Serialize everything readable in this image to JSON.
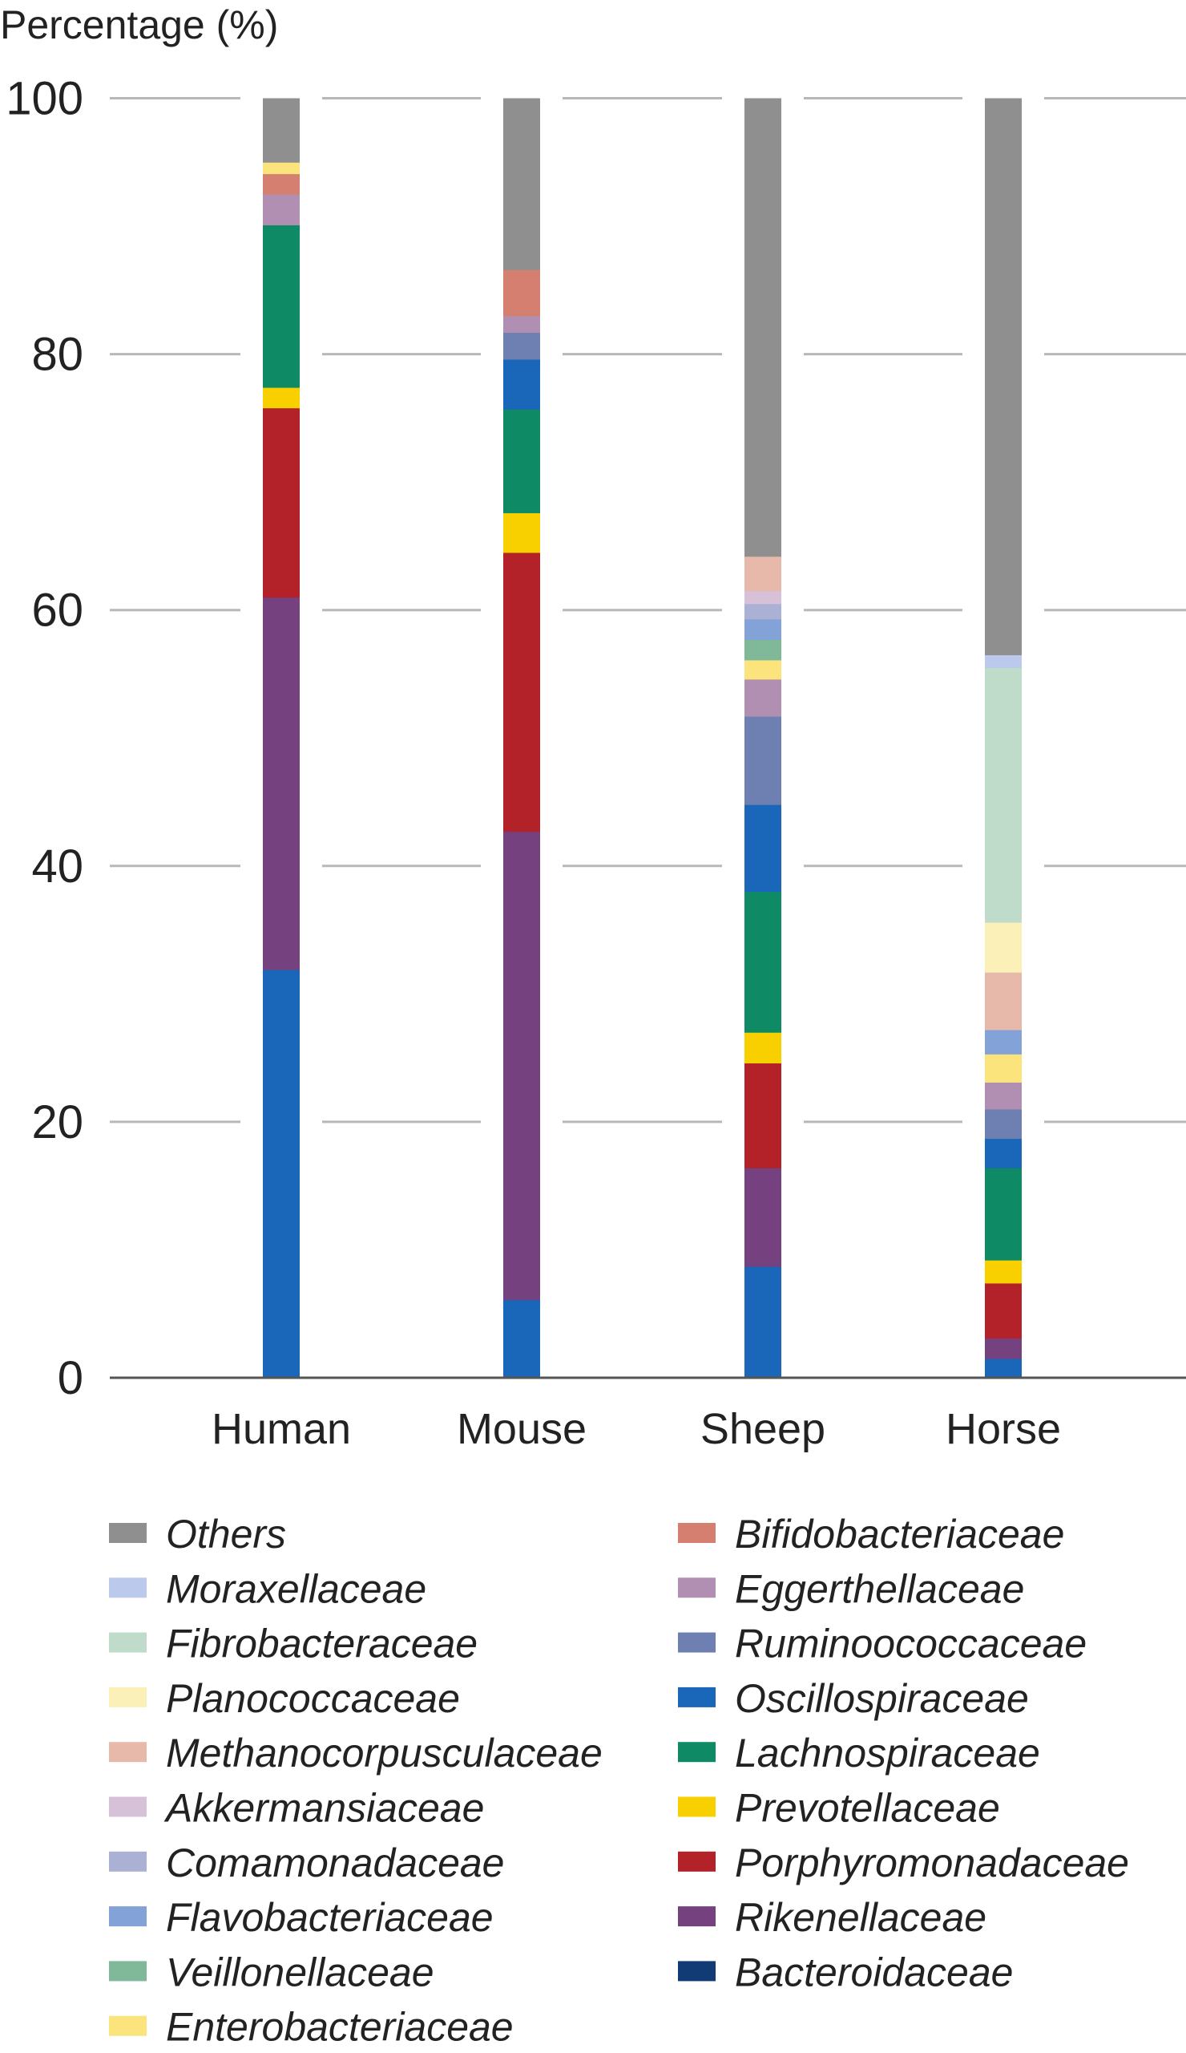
{
  "chart_data": {
    "type": "bar",
    "stacked": true,
    "title": "",
    "xlabel": "",
    "ylabel": "Percentage (%)",
    "ylim": [
      0,
      100
    ],
    "yticks": [
      "0",
      "20",
      "40",
      "60",
      "80",
      "100"
    ],
    "grid": true,
    "categories": [
      "Human",
      "Mouse",
      "Sheep",
      "Horse"
    ],
    "families": [
      {
        "name": "Others",
        "color": "#8f8f8f"
      },
      {
        "name": "Moraxellaceae",
        "color": "#bac9ec"
      },
      {
        "name": "Fibrobacteraceae",
        "color": "#bedcc9"
      },
      {
        "name": "Planococcaceae",
        "color": "#fbf1b8"
      },
      {
        "name": "Methanocorpusculaceae",
        "color": "#e7b9aa"
      },
      {
        "name": "Akkermansiaceae",
        "color": "#d7c1d9"
      },
      {
        "name": "Comamonadaceae",
        "color": "#abb1d4"
      },
      {
        "name": "Flavobacteriaceae",
        "color": "#82a2d8"
      },
      {
        "name": "Veillonellaceae",
        "color": "#7fb99a"
      },
      {
        "name": "Enterobacteriaceae",
        "color": "#fbe47c"
      },
      {
        "name": "Bifidobacteriaceae",
        "color": "#d47f6f"
      },
      {
        "name": "Eggerthellaceae",
        "color": "#b18fb2"
      },
      {
        "name": "Ruminoococcaceae",
        "color": "#6d80b1"
      },
      {
        "name": "Oscillospiraceae",
        "color": "#1a66b8"
      },
      {
        "name": "Lachnospiraceae",
        "color": "#0e8a65"
      },
      {
        "name": "Prevotellaceae",
        "color": "#f8d000"
      },
      {
        "name": "Porphyromonadaceae",
        "color": "#b32129"
      },
      {
        "name": "Rikenellaceae",
        "color": "#76417f"
      },
      {
        "name": "Bacteroidaceae",
        "color": "#113b75"
      }
    ],
    "bars": [
      {
        "category": "Human",
        "segments": [
          {
            "family": "Bacteroidaceae",
            "value": 31.9,
            "color": "#1a66b8"
          },
          {
            "family": "Rikenellaceae",
            "value": 29.1
          },
          {
            "family": "Porphyromonadaceae",
            "value": 14.8
          },
          {
            "family": "Prevotellaceae",
            "value": 1.6
          },
          {
            "family": "Lachnospiraceae",
            "value": 12.7
          },
          {
            "family": "Eggerthellaceae",
            "value": 2.4
          },
          {
            "family": "Bifidobacteriaceae",
            "value": 1.6
          },
          {
            "family": "Enterobacteriaceae",
            "value": 0.9
          },
          {
            "family": "Others",
            "value": 5.0
          }
        ]
      },
      {
        "category": "Mouse",
        "segments": [
          {
            "family": "Bacteroidaceae",
            "value": 6.1,
            "color": "#1a66b8"
          },
          {
            "family": "Rikenellaceae",
            "value": 36.6
          },
          {
            "family": "Porphyromonadaceae",
            "value": 21.8
          },
          {
            "family": "Prevotellaceae",
            "value": 3.1
          },
          {
            "family": "Lachnospiraceae",
            "value": 8.1
          },
          {
            "family": "Oscillospiraceae",
            "value": 3.9
          },
          {
            "family": "Ruminoococcaceae",
            "value": 2.1
          },
          {
            "family": "Eggerthellaceae",
            "value": 1.3
          },
          {
            "family": "Bifidobacteriaceae",
            "value": 3.6
          },
          {
            "family": "Others",
            "value": 13.4
          }
        ]
      },
      {
        "category": "Sheep",
        "segments": [
          {
            "family": "Bacteroidaceae",
            "value": 8.7,
            "color": "#1a66b8"
          },
          {
            "family": "Rikenellaceae",
            "value": 7.7
          },
          {
            "family": "Porphyromonadaceae",
            "value": 8.2
          },
          {
            "family": "Prevotellaceae",
            "value": 2.4
          },
          {
            "family": "Lachnospiraceae",
            "value": 11.0
          },
          {
            "family": "Oscillospiraceae",
            "value": 6.8
          },
          {
            "family": "Ruminoococcaceae",
            "value": 6.9
          },
          {
            "family": "Eggerthellaceae",
            "value": 2.9
          },
          {
            "family": "Enterobacteriaceae",
            "value": 1.5
          },
          {
            "family": "Veillonellaceae",
            "value": 1.6
          },
          {
            "family": "Flavobacteriaceae",
            "value": 1.6
          },
          {
            "family": "Comamonadaceae",
            "value": 1.2
          },
          {
            "family": "Akkermansiaceae",
            "value": 1.0
          },
          {
            "family": "Methanocorpusculaceae",
            "value": 2.7
          },
          {
            "family": "Others",
            "value": 35.8
          }
        ]
      },
      {
        "category": "Horse",
        "segments": [
          {
            "family": "Bacteroidaceae",
            "value": 1.5,
            "color": "#1a66b8"
          },
          {
            "family": "Rikenellaceae",
            "value": 1.6
          },
          {
            "family": "Porphyromonadaceae",
            "value": 4.3
          },
          {
            "family": "Prevotellaceae",
            "value": 1.8
          },
          {
            "family": "Lachnospiraceae",
            "value": 7.2
          },
          {
            "family": "Oscillospiraceae",
            "value": 2.3
          },
          {
            "family": "Ruminoococcaceae",
            "value": 2.3
          },
          {
            "family": "Eggerthellaceae",
            "value": 2.1
          },
          {
            "family": "Enterobacteriaceae",
            "value": 2.2
          },
          {
            "family": "Flavobacteriaceae",
            "value": 1.9
          },
          {
            "family": "Methanocorpusculaceae",
            "value": 4.5
          },
          {
            "family": "Planococcaceae",
            "value": 3.9
          },
          {
            "family": "Fibrobacteraceae",
            "value": 19.9
          },
          {
            "family": "Moraxellaceae",
            "value": 1.0
          },
          {
            "family": "Others",
            "value": 43.5
          }
        ]
      }
    ],
    "legend": {
      "placement": "bottom",
      "columns": 2
    }
  }
}
